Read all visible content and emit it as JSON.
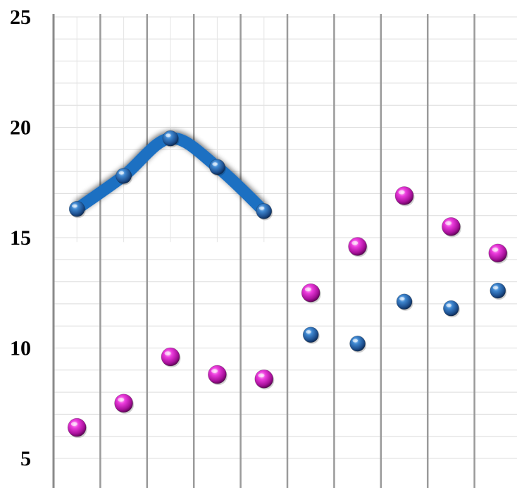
{
  "chart_data": {
    "type": "scatter",
    "title": "",
    "xlabel": "",
    "ylabel": "",
    "x": [
      1,
      2,
      3,
      4,
      5,
      6,
      7,
      8,
      9,
      10
    ],
    "xlim": [
      0.5,
      10.5
    ],
    "ylim": [
      5,
      25
    ],
    "y_ticks": [
      5,
      10,
      15,
      20,
      25
    ],
    "y_tick_labels": [
      "5",
      "10",
      "15",
      "20",
      "25"
    ],
    "grid": true,
    "legend": "none",
    "series": [
      {
        "style": "blue-sphere",
        "color": "#2f6fb5",
        "values": [
          16.3,
          17.8,
          19.5,
          18.2,
          16.2,
          10.6,
          10.2,
          12.1,
          11.8,
          12.6
        ]
      },
      {
        "style": "magenta-sphere",
        "color": "#d61fc8",
        "values": [
          6.4,
          7.5,
          9.6,
          8.8,
          8.6,
          12.5,
          14.6,
          16.9,
          15.5,
          14.3
        ]
      }
    ],
    "trend_line": {
      "color": "#1f6fc2",
      "x": [
        1,
        2,
        3,
        4,
        5
      ],
      "values": [
        16.3,
        17.8,
        19.5,
        18.2,
        16.2
      ]
    }
  }
}
